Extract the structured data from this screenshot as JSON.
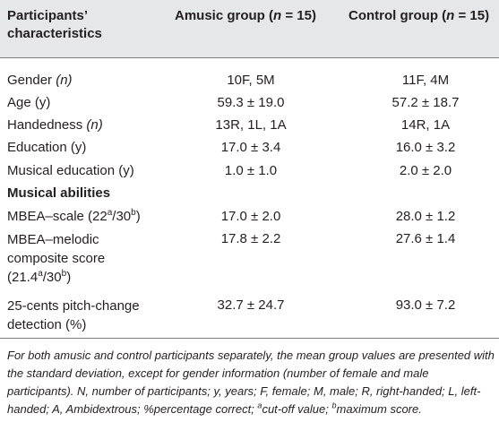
{
  "header": {
    "col1_line1": "Participants’",
    "col1_line2": "characteristics",
    "col2_prefix": "Amusic group (",
    "col2_n": "n",
    "col2_suffix": " = 15)",
    "col3_prefix": "Control group (",
    "col3_n": "n",
    "col3_suffix": " = 15)"
  },
  "rows": {
    "gender": {
      "label": "Gender ",
      "unit": "(n)",
      "amusic": "10F, 5M",
      "control": "11F, 4M"
    },
    "age": {
      "label": "Age (y)",
      "amusic": "59.3 ± 19.0",
      "control": "57.2 ± 18.7"
    },
    "handedness": {
      "label": "Handedness ",
      "unit": "(n)",
      "amusic": "13R, 1L, 1A",
      "control": "14R, 1A"
    },
    "education": {
      "label": "Education (y)",
      "amusic": "17.0 ± 3.4",
      "control": "16.0 ± 3.2"
    },
    "musical_education": {
      "label": "Musical education (y)",
      "amusic": "1.0 ± 1.0",
      "control": "2.0 ± 2.0"
    },
    "section_musical": {
      "label": "Musical abilities"
    },
    "mbea_scale": {
      "label_prefix": "MBEA–scale (22",
      "sup_a": "a",
      "label_mid": "/30",
      "sup_b": "b",
      "label_suffix": ")",
      "amusic": "17.0 ± 2.0",
      "control": "28.0 ± 1.2"
    },
    "mbea_melodic": {
      "line1": "MBEA–melodic",
      "line2": "composite score",
      "line3_prefix": "(21.4",
      "sup_a": "a",
      "line3_mid": "/30",
      "sup_b": "b",
      "line3_suffix": ")",
      "amusic": "17.8 ± 2.2",
      "control": "27.6 ± 1.4"
    },
    "pitch_change": {
      "line1": "25-cents pitch-change",
      "line2": "detection (%)",
      "amusic": "32.7 ± 24.7",
      "control": "93.0 ± 7.2"
    }
  },
  "footnote": {
    "main": "For both amusic and control participants separately, the mean group values are presented with the standard deviation, except for gender information (number of female and male participants). N, number of participants; y, years; F, female; M, male; R, right-handed; L, left-handed; A, Ambidextrous; %percentage correct; ",
    "sup_a": "a",
    "cutoff": "cut-off value; ",
    "sup_b": "b",
    "max": "maximum score."
  }
}
